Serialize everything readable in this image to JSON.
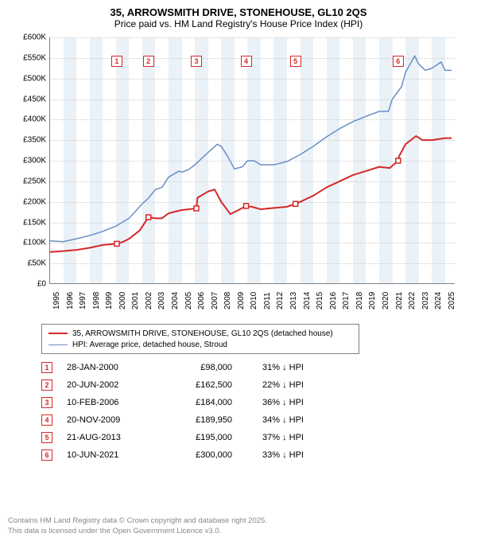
{
  "title": {
    "line1": "35, ARROWSMITH DRIVE, STONEHOUSE, GL10 2QS",
    "line2": "Price paid vs. HM Land Registry's House Price Index (HPI)"
  },
  "chart": {
    "type": "line",
    "background_color": "#ffffff",
    "band_color": "#eaf2f8",
    "grid_color": "#cccccc",
    "axis_color": "#808080",
    "xlim": [
      1995,
      2025.8
    ],
    "ylim": [
      0,
      600000
    ],
    "xtick_years": [
      1995,
      1996,
      1997,
      1998,
      1999,
      2000,
      2001,
      2002,
      2003,
      2004,
      2005,
      2006,
      2007,
      2008,
      2009,
      2010,
      2011,
      2012,
      2013,
      2014,
      2015,
      2016,
      2017,
      2018,
      2019,
      2020,
      2021,
      2022,
      2023,
      2024,
      2025
    ],
    "ytick_step": 50000,
    "ytick_labels": [
      "£0",
      "£50K",
      "£100K",
      "£150K",
      "£200K",
      "£250K",
      "£300K",
      "£350K",
      "£400K",
      "£450K",
      "£500K",
      "£550K",
      "£600K"
    ],
    "currency_prefix": "£",
    "tick_fontsize": 10,
    "series": [
      {
        "name": "35, ARROWSMITH DRIVE, STONEHOUSE, GL10 2QS (detached house)",
        "color": "#d62728",
        "line_width": 2,
        "points": [
          [
            1995,
            78000
          ],
          [
            1996,
            80000
          ],
          [
            1997,
            83000
          ],
          [
            1998,
            88000
          ],
          [
            1999,
            95000
          ],
          [
            2000.07,
            98000
          ],
          [
            2000.5,
            102000
          ],
          [
            2001,
            110000
          ],
          [
            2001.8,
            130000
          ],
          [
            2002.47,
            162500
          ],
          [
            2003,
            160000
          ],
          [
            2003.5,
            160000
          ],
          [
            2004,
            172000
          ],
          [
            2005,
            180000
          ],
          [
            2006.11,
            184000
          ],
          [
            2006.2,
            210000
          ],
          [
            2007,
            225000
          ],
          [
            2007.5,
            230000
          ],
          [
            2008,
            200000
          ],
          [
            2008.7,
            170000
          ],
          [
            2009,
            175000
          ],
          [
            2009.89,
            189950
          ],
          [
            2010.3,
            188000
          ],
          [
            2011,
            182000
          ],
          [
            2012,
            185000
          ],
          [
            2013,
            188000
          ],
          [
            2013.64,
            195000
          ],
          [
            2014,
            200000
          ],
          [
            2015,
            215000
          ],
          [
            2016,
            235000
          ],
          [
            2017,
            250000
          ],
          [
            2018,
            265000
          ],
          [
            2019,
            275000
          ],
          [
            2020,
            285000
          ],
          [
            2020.8,
            282000
          ],
          [
            2021.44,
            300000
          ],
          [
            2021.5,
            310000
          ],
          [
            2022,
            340000
          ],
          [
            2022.8,
            360000
          ],
          [
            2023.3,
            350000
          ],
          [
            2024,
            350000
          ],
          [
            2025,
            355000
          ],
          [
            2025.5,
            355000
          ]
        ]
      },
      {
        "name": "HPI: Average price, detached house, Stroud",
        "color": "#6a8fc5",
        "line_width": 1.5,
        "points": [
          [
            1995,
            105000
          ],
          [
            1996,
            103000
          ],
          [
            1997,
            110000
          ],
          [
            1998,
            118000
          ],
          [
            1999,
            128000
          ],
          [
            2000,
            141000
          ],
          [
            2001,
            160000
          ],
          [
            2002,
            195000
          ],
          [
            2002.5,
            210000
          ],
          [
            2003,
            230000
          ],
          [
            2003.5,
            235000
          ],
          [
            2004,
            260000
          ],
          [
            2004.8,
            275000
          ],
          [
            2005,
            272000
          ],
          [
            2005.5,
            278000
          ],
          [
            2006,
            290000
          ],
          [
            2007,
            320000
          ],
          [
            2007.7,
            340000
          ],
          [
            2008,
            335000
          ],
          [
            2008.5,
            310000
          ],
          [
            2009,
            280000
          ],
          [
            2009.6,
            285000
          ],
          [
            2010,
            300000
          ],
          [
            2010.5,
            300000
          ],
          [
            2011,
            290000
          ],
          [
            2012,
            290000
          ],
          [
            2013,
            298000
          ],
          [
            2014,
            315000
          ],
          [
            2015,
            335000
          ],
          [
            2016,
            358000
          ],
          [
            2017,
            378000
          ],
          [
            2018,
            395000
          ],
          [
            2019,
            408000
          ],
          [
            2020,
            420000
          ],
          [
            2020.7,
            420000
          ],
          [
            2021,
            450000
          ],
          [
            2021.7,
            480000
          ],
          [
            2022,
            515000
          ],
          [
            2022.7,
            555000
          ],
          [
            2023,
            535000
          ],
          [
            2023.5,
            520000
          ],
          [
            2024,
            525000
          ],
          [
            2024.7,
            540000
          ],
          [
            2025,
            520000
          ],
          [
            2025.5,
            520000
          ]
        ]
      }
    ],
    "markers": [
      {
        "n": "1",
        "x": 2000.07,
        "y_top": 555000,
        "color": "#d62728",
        "date": "28-JAN-2000",
        "price": "£98,000",
        "diff": "31%",
        "dir": "↓"
      },
      {
        "n": "2",
        "x": 2002.47,
        "y_top": 555000,
        "color": "#d62728",
        "date": "20-JUN-2002",
        "price": "£162,500",
        "diff": "22%",
        "dir": "↓"
      },
      {
        "n": "3",
        "x": 2006.11,
        "y_top": 555000,
        "color": "#d62728",
        "date": "10-FEB-2006",
        "price": "£184,000",
        "diff": "36%",
        "dir": "↓"
      },
      {
        "n": "4",
        "x": 2009.89,
        "y_top": 555000,
        "color": "#d62728",
        "date": "20-NOV-2009",
        "price": "£189,950",
        "diff": "34%",
        "dir": "↓"
      },
      {
        "n": "5",
        "x": 2013.64,
        "y_top": 555000,
        "color": "#d62728",
        "date": "21-AUG-2013",
        "price": "£195,000",
        "diff": "37%",
        "dir": "↓"
      },
      {
        "n": "6",
        "x": 2021.44,
        "y_top": 555000,
        "color": "#d62728",
        "date": "10-JUN-2021",
        "price": "£300,000",
        "diff": "33%",
        "dir": "↓"
      }
    ],
    "hpi_label_suffix": " HPI"
  },
  "legend": {
    "items": [
      {
        "color": "#d62728",
        "width": 2,
        "label": "35, ARROWSMITH DRIVE, STONEHOUSE, GL10 2QS (detached house)"
      },
      {
        "color": "#6a8fc5",
        "width": 1.5,
        "label": "HPI: Average price, detached house, Stroud"
      }
    ]
  },
  "footer": {
    "line1": "Contains HM Land Registry data © Crown copyright and database right 2025.",
    "line2": "This data is licensed under the Open Government Licence v3.0."
  }
}
